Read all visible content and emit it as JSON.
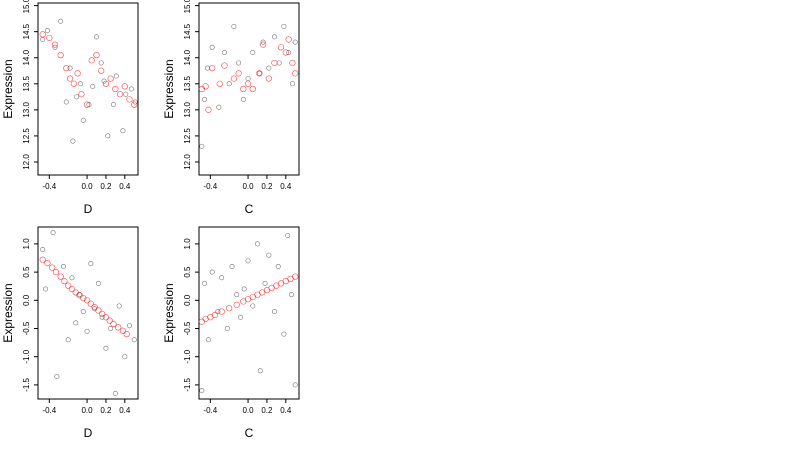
{
  "chart_data": [
    {
      "type": "scatter",
      "title": "",
      "xlabel": "D",
      "ylabel": "Expression",
      "xlim": [
        -0.52,
        0.54
      ],
      "ylim": [
        11.75,
        15.05
      ],
      "xticks": [
        -0.4,
        0.0,
        0.2,
        0.4
      ],
      "xtick_labels": [
        "-0.4",
        "0.0",
        "0.2",
        "0.4"
      ],
      "yticks": [
        12.0,
        12.5,
        13.0,
        13.5,
        14.0,
        14.5,
        15.0
      ],
      "ytick_labels": [
        "12.0",
        "12.5",
        "13.0",
        "13.5",
        "14.0",
        "14.5",
        "15.0"
      ],
      "grid": false,
      "colors": {
        "observed": "#000000",
        "fitted": "#ff0000"
      },
      "series": [
        {
          "x": [
            -0.47,
            -0.42,
            -0.34,
            -0.28,
            -0.22,
            -0.18,
            -0.15,
            -0.11,
            -0.07,
            -0.04,
            0.02,
            0.06,
            0.1,
            0.15,
            0.18,
            0.22,
            0.28,
            0.31,
            0.38,
            0.41,
            0.47,
            0.51
          ],
          "y": [
            14.35,
            14.52,
            14.2,
            14.7,
            13.15,
            13.8,
            12.4,
            13.25,
            13.5,
            12.8,
            13.1,
            13.45,
            14.4,
            13.9,
            13.55,
            12.5,
            13.1,
            13.65,
            12.6,
            13.3,
            13.4,
            13.15
          ]
        },
        {
          "x": [
            -0.47,
            -0.4,
            -0.34,
            -0.28,
            -0.22,
            -0.18,
            -0.14,
            -0.1,
            -0.06,
            0.0,
            0.05,
            0.1,
            0.15,
            0.2,
            0.25,
            0.3,
            0.35,
            0.4,
            0.45,
            0.5
          ],
          "y": [
            14.45,
            14.38,
            14.25,
            14.05,
            13.8,
            13.6,
            13.5,
            13.7,
            13.3,
            13.1,
            13.95,
            14.05,
            13.75,
            13.5,
            13.6,
            13.4,
            13.3,
            13.45,
            13.2,
            13.1
          ]
        }
      ]
    },
    {
      "type": "scatter",
      "title": "",
      "xlabel": "C",
      "ylabel": "Expression",
      "xlim": [
        -0.52,
        0.54
      ],
      "ylim": [
        11.75,
        15.05
      ],
      "xticks": [
        -0.4,
        0.0,
        0.2,
        0.4
      ],
      "xtick_labels": [
        "-0.4",
        "0.0",
        "0.2",
        "0.4"
      ],
      "yticks": [
        12.0,
        12.5,
        13.0,
        13.5,
        14.0,
        14.5,
        15.0
      ],
      "ytick_labels": [
        "12.0",
        "12.5",
        "13.0",
        "13.5",
        "14.0",
        "14.5",
        "15.0"
      ],
      "grid": false,
      "colors": {
        "observed": "#000000",
        "fitted": "#ff0000"
      },
      "series": [
        {
          "x": [
            -0.49,
            -0.46,
            -0.43,
            -0.38,
            -0.31,
            -0.25,
            -0.2,
            -0.15,
            -0.1,
            -0.05,
            0.0,
            0.05,
            0.12,
            0.16,
            0.22,
            0.28,
            0.33,
            0.38,
            0.43,
            0.47,
            0.5
          ],
          "y": [
            12.3,
            13.2,
            13.8,
            14.2,
            13.05,
            14.1,
            13.5,
            14.6,
            13.9,
            13.2,
            13.6,
            14.1,
            13.7,
            14.3,
            13.8,
            14.4,
            13.9,
            14.6,
            14.1,
            13.5,
            14.3
          ]
        },
        {
          "x": [
            -0.49,
            -0.45,
            -0.42,
            -0.38,
            -0.3,
            -0.25,
            -0.15,
            -0.1,
            -0.05,
            0.0,
            0.05,
            0.12,
            0.16,
            0.22,
            0.28,
            0.35,
            0.4,
            0.43,
            0.47,
            0.5
          ],
          "y": [
            13.4,
            13.45,
            13.0,
            13.8,
            13.5,
            13.85,
            13.6,
            13.7,
            13.4,
            13.5,
            13.4,
            13.7,
            14.25,
            13.6,
            13.9,
            14.2,
            14.1,
            14.35,
            13.9,
            13.7
          ]
        }
      ]
    },
    {
      "type": "scatter",
      "title": "",
      "xlabel": "D",
      "ylabel": "Expression",
      "xlim": [
        -0.52,
        0.54
      ],
      "ylim": [
        -1.75,
        1.3
      ],
      "xticks": [
        -0.4,
        0.0,
        0.2,
        0.4
      ],
      "xtick_labels": [
        "-0.4",
        "0.0",
        "0.2",
        "0.4"
      ],
      "yticks": [
        1.0,
        0.5,
        0.0,
        -0.5,
        -1.0,
        -1.5
      ],
      "ytick_labels": [
        "1.0",
        "0.5",
        "0.0",
        "-0.5",
        "-1.0",
        "-1.5"
      ],
      "grid": false,
      "colors": {
        "observed": "#000000",
        "fitted": "#ff0000"
      },
      "series": [
        {
          "x": [
            -0.47,
            -0.44,
            -0.36,
            -0.32,
            -0.25,
            -0.2,
            -0.16,
            -0.12,
            -0.08,
            -0.04,
            0.0,
            0.04,
            0.08,
            0.12,
            0.16,
            0.2,
            0.25,
            0.3,
            0.34,
            0.4,
            0.45,
            0.5
          ],
          "y": [
            0.9,
            0.2,
            1.2,
            -1.35,
            0.6,
            -0.7,
            0.4,
            -0.4,
            0.1,
            -0.2,
            -0.55,
            0.65,
            -0.15,
            0.3,
            -0.3,
            -0.85,
            -0.5,
            -1.65,
            -0.1,
            -1.0,
            -0.45,
            -0.7
          ]
        },
        {
          "x": [
            -0.47,
            -0.42,
            -0.37,
            -0.33,
            -0.28,
            -0.24,
            -0.2,
            -0.16,
            -0.12,
            -0.08,
            -0.04,
            0.0,
            0.04,
            0.08,
            0.12,
            0.16,
            0.2,
            0.24,
            0.28,
            0.33,
            0.38,
            0.42
          ],
          "y": [
            0.72,
            0.66,
            0.58,
            0.5,
            0.42,
            0.34,
            0.26,
            0.2,
            0.14,
            0.09,
            0.04,
            0.0,
            -0.06,
            -0.12,
            -0.18,
            -0.24,
            -0.3,
            -0.36,
            -0.42,
            -0.48,
            -0.54,
            -0.6
          ]
        }
      ]
    },
    {
      "type": "scatter",
      "title": "",
      "xlabel": "C",
      "ylabel": "Expression",
      "xlim": [
        -0.52,
        0.54
      ],
      "ylim": [
        -1.75,
        1.3
      ],
      "xticks": [
        -0.4,
        0.0,
        0.2,
        0.4
      ],
      "xtick_labels": [
        "-0.4",
        "0.0",
        "0.2",
        "0.4"
      ],
      "yticks": [
        1.0,
        0.5,
        0.0,
        -0.5,
        -1.0,
        -1.5
      ],
      "ytick_labels": [
        "1.0",
        "0.5",
        "0.0",
        "-0.5",
        "-1.0",
        "-1.5"
      ],
      "grid": false,
      "colors": {
        "observed": "#000000",
        "fitted": "#ff0000"
      },
      "series": [
        {
          "x": [
            -0.49,
            -0.46,
            -0.42,
            -0.38,
            -0.32,
            -0.28,
            -0.22,
            -0.17,
            -0.12,
            -0.08,
            -0.04,
            0.0,
            0.05,
            0.1,
            0.13,
            0.18,
            0.22,
            0.28,
            0.32,
            0.38,
            0.42,
            0.46,
            0.5
          ],
          "y": [
            -1.6,
            0.3,
            -0.7,
            0.5,
            -0.2,
            0.4,
            -0.5,
            0.6,
            0.1,
            -0.3,
            0.2,
            0.7,
            -0.1,
            1.0,
            -1.25,
            0.3,
            0.8,
            -0.2,
            0.6,
            -0.6,
            1.15,
            0.1,
            -1.5
          ]
        },
        {
          "x": [
            -0.49,
            -0.45,
            -0.4,
            -0.35,
            -0.28,
            -0.2,
            -0.12,
            -0.05,
            0.0,
            0.05,
            0.1,
            0.15,
            0.2,
            0.25,
            0.3,
            0.35,
            0.4,
            0.45,
            0.5
          ],
          "y": [
            -0.38,
            -0.33,
            -0.3,
            -0.26,
            -0.2,
            -0.14,
            -0.08,
            -0.02,
            0.02,
            0.06,
            0.1,
            0.14,
            0.18,
            0.22,
            0.26,
            0.3,
            0.34,
            0.38,
            0.42
          ]
        }
      ]
    }
  ]
}
